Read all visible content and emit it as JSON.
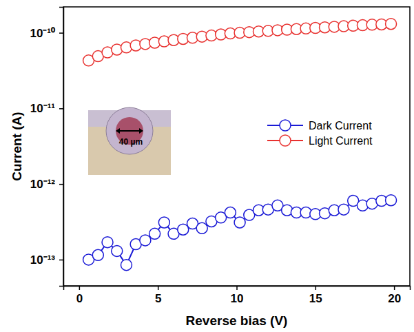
{
  "chart_data": {
    "type": "line",
    "x_label": "Reverse bias (V)",
    "y_label": "Current (A)",
    "log": "y",
    "legend": "right",
    "marker": "circle",
    "line_style": "solid",
    "annotations": [
      "40 µm"
    ],
    "xlim": [
      -1,
      21
    ],
    "xticks": [
      0,
      5,
      10,
      15,
      20
    ],
    "ylim": [
      4.5e-14,
      2.2e-10
    ],
    "yticks": [
      {
        "value": 1e-13,
        "label": "10⁻¹³"
      },
      {
        "value": 1e-12,
        "label": "10⁻¹²"
      },
      {
        "value": 1e-11,
        "label": "10⁻¹¹"
      },
      {
        "value": 1e-10,
        "label": "10⁻¹⁰"
      }
    ],
    "x": [
      0.6,
      1.2,
      1.8,
      2.4,
      3.0,
      3.6,
      4.2,
      4.8,
      5.4,
      6.0,
      6.6,
      7.2,
      7.8,
      8.4,
      9.0,
      9.6,
      10.2,
      10.8,
      11.4,
      12.0,
      12.6,
      13.2,
      13.8,
      14.4,
      15.0,
      15.6,
      16.2,
      16.8,
      17.4,
      18.0,
      18.6,
      19.2,
      19.8
    ],
    "series": [
      {
        "name": "Dark Current",
        "color": "#1a1ad6",
        "values": [
          1e-13,
          1.15e-13,
          1.7e-13,
          1.3e-13,
          8.5e-14,
          1.6e-13,
          1.8e-13,
          2.2e-13,
          3.1e-13,
          2.2e-13,
          2.5e-13,
          3e-13,
          2.6e-13,
          3.2e-13,
          3.6e-13,
          4.2e-13,
          3.1e-13,
          3.9e-13,
          4.5e-13,
          4.6e-13,
          5.2e-13,
          4.5e-13,
          4.2e-13,
          4.2e-13,
          4e-13,
          4.1e-13,
          4.5e-13,
          4.6e-13,
          6e-13,
          5.2e-13,
          5.5e-13,
          6e-13,
          6.1e-13
        ]
      },
      {
        "name": "Light Current",
        "color": "#e8312f",
        "values": [
          4.3e-11,
          4.9e-11,
          5.5e-11,
          6e-11,
          6.4e-11,
          6.8e-11,
          7.1e-11,
          7.4e-11,
          7.7e-11,
          8e-11,
          8.3e-11,
          8.6e-11,
          8.9e-11,
          9.2e-11,
          9.5e-11,
          9.8e-11,
          1e-10,
          1.02e-10,
          1.04e-10,
          1.06e-10,
          1.08e-10,
          1.1e-10,
          1.12e-10,
          1.14e-10,
          1.16e-10,
          1.18e-10,
          1.2e-10,
          1.22e-10,
          1.24e-10,
          1.26e-10,
          1.28e-10,
          1.29e-10,
          1.31e-10
        ]
      }
    ]
  }
}
